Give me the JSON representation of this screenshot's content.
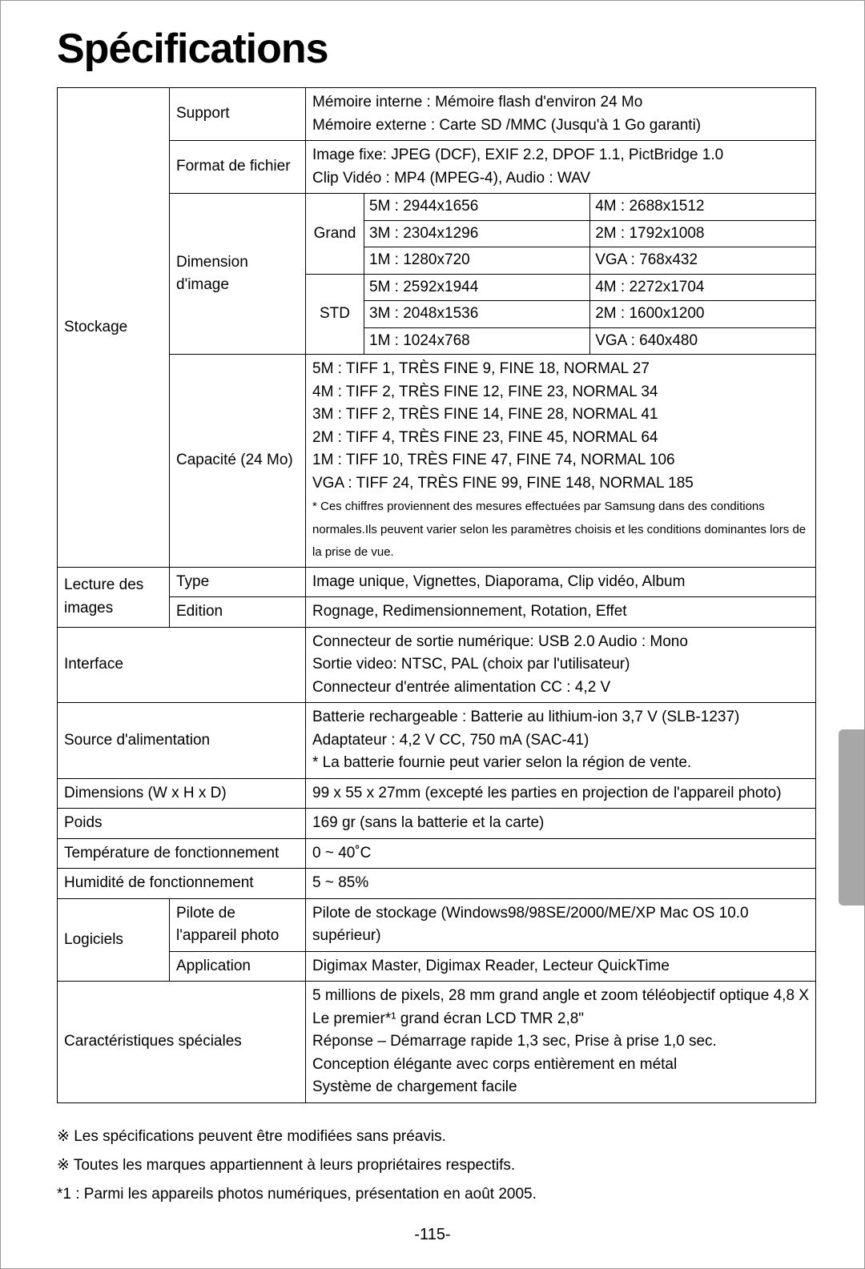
{
  "title": "Spécifications",
  "page_number": "-115-",
  "colors": {
    "page_bg": "#ffffff",
    "outer_bg": "#b5b5b5",
    "side_tab": "#a7a7a7",
    "border": "#000000",
    "text": "#000000"
  },
  "stockage": {
    "label": "Stockage",
    "support": {
      "label": "Support",
      "lines": [
        "Mémoire interne : Mémoire flash d'environ 24 Mo",
        "Mémoire externe : Carte SD /MMC (Jusqu'à 1 Go garanti)"
      ]
    },
    "format": {
      "label": "Format de fichier",
      "lines": [
        "Image fixe: JPEG (DCF), EXIF 2.2, DPOF 1.1, PictBridge 1.0",
        "Clip Vidéo : MP4 (MPEG-4),  Audio : WAV"
      ]
    },
    "dimension": {
      "label": "Dimension d'image",
      "grand_label": "Grand",
      "std_label": "STD",
      "grand": [
        [
          "5M  :  2944x1656",
          "4M    :  2688x1512"
        ],
        [
          "3M  :  2304x1296",
          "2M    :  1792x1008"
        ],
        [
          "1M  :  1280x720",
          "VGA  :  768x432"
        ]
      ],
      "std": [
        [
          "5M  :  2592x1944",
          "4M    :  2272x1704"
        ],
        [
          "3M  :  2048x1536",
          "2M    :  1600x1200"
        ],
        [
          "1M  :  1024x768",
          "VGA  :  640x480"
        ]
      ]
    },
    "capacite": {
      "label": "Capacité (24 Mo)",
      "lines": [
        "5M : TIFF 1,  TRÈS FINE 9,  FINE 18,  NORMAL 27",
        "4M : TIFF 2,  TRÈS FINE 12,  FINE 23,  NORMAL 34",
        "3M : TIFF 2,  TRÈS FINE 14,  FINE 28,  NORMAL 41",
        "2M : TIFF 4,  TRÈS FINE 23,  FINE 45,  NORMAL 64",
        "1M : TIFF 10, TRÈS FINE 47,  FINE 74,  NORMAL 106",
        "VGA : TIFF 24, TRÈS FINE 99, FINE 148,  NORMAL 185",
        "* Ces chiffres proviennent des mesures effectuées par Samsung dans des conditions normales.Ils peuvent varier selon les paramètres choisis et les conditions dominantes lors de la prise de vue."
      ]
    }
  },
  "lecture": {
    "label": "Lecture des images",
    "type": {
      "label": "Type",
      "value": "Image unique, Vignettes, Diaporama, Clip vidéo, Album"
    },
    "edition": {
      "label": "Edition",
      "value": "Rognage, Redimensionnement, Rotation, Effet"
    }
  },
  "interface": {
    "label": "Interface",
    "lines": [
      "Connecteur de sortie numérique: USB 2.0     Audio : Mono",
      "Sortie video: NTSC, PAL (choix par l'utilisateur)",
      "Connecteur d'entrée alimentation CC : 4,2 V"
    ]
  },
  "source": {
    "label": "Source d'alimentation",
    "lines": [
      "Batterie rechargeable : Batterie au lithium-ion 3,7 V (SLB-1237)",
      "Adaptateur : 4,2 V CC, 750 mA (SAC-41)",
      "* La batterie fournie peut varier selon la région de vente."
    ]
  },
  "dimensions": {
    "label": "Dimensions (W x H x D)",
    "value": "99 x 55 x 27mm (excepté les parties en projection de l'appareil photo)"
  },
  "poids": {
    "label": "Poids",
    "value": "169 gr (sans la batterie et la carte)"
  },
  "temp": {
    "label": "Température de fonctionnement",
    "value": "0 ~ 40˚C"
  },
  "humid": {
    "label": "Humidité de fonctionnement",
    "value": "5 ~ 85%"
  },
  "logiciels": {
    "label": "Logiciels",
    "pilote": {
      "label": "Pilote de l'appareil photo",
      "value": "Pilote de stockage (Windows98/98SE/2000/ME/XP Mac OS 10.0 supérieur)"
    },
    "app": {
      "label": "Application",
      "value": "Digimax Master, Digimax Reader, Lecteur QuickTime"
    }
  },
  "special": {
    "label": "Caractéristiques spéciales",
    "lines": [
      "5 millions de pixels, 28 mm grand angle et zoom téléobjectif optique 4,8 X",
      "Le premier*¹ grand écran LCD TMR 2,8\"",
      "Réponse – Démarrage rapide 1,3 sec, Prise à prise 1,0 sec.",
      "Conception élégante avec corps entièrement en métal",
      "Système de chargement facile"
    ]
  },
  "footnotes": [
    "※ Les spécifications peuvent être modifiées sans préavis.",
    "※ Toutes les marques appartiennent à leurs propriétaires respectifs.",
    "*1 : Parmi les appareils photos numériques, présentation en août 2005."
  ]
}
